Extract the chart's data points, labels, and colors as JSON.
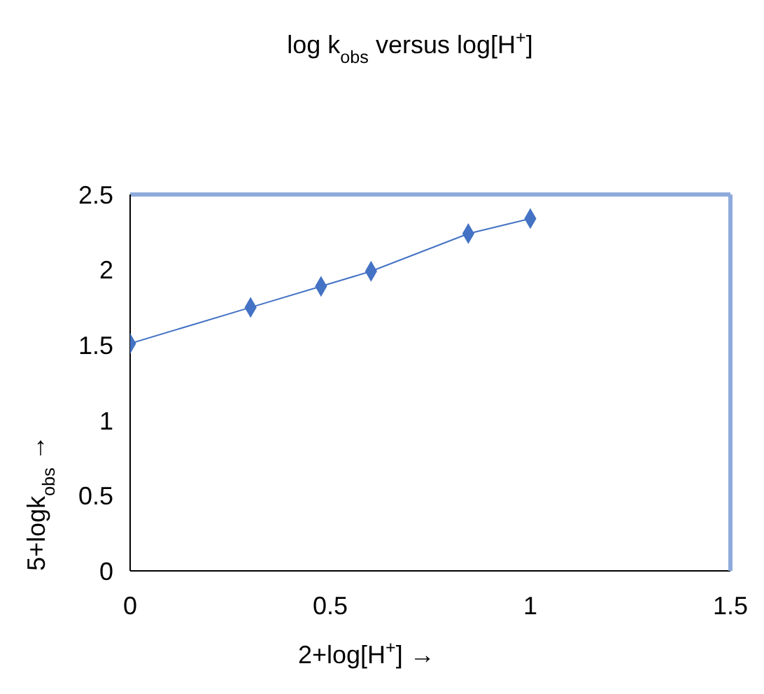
{
  "chart_data": {
    "type": "line",
    "title": "log k$_{obs}$ versus log[H$^{+}$]",
    "xlabel": "2+log[H$^{+}$]   →",
    "ylabel": "5+logk$_{obs}$ →",
    "x": [
      0,
      0.301,
      0.477,
      0.602,
      0.845,
      1
    ],
    "series": [
      {
        "color": "#4472c4",
        "values": [
          1.51,
          1.75,
          1.89,
          1.99,
          2.24,
          2.34
        ]
      }
    ],
    "xlim": [
      0,
      1.5
    ],
    "xticks": [
      0,
      0.5,
      1,
      1.5
    ],
    "ylim": [
      0,
      2.5
    ],
    "yticks": [
      0,
      0.5,
      1,
      1.5,
      2,
      2.5
    ],
    "marker": "diamond",
    "line_style": "solid"
  }
}
